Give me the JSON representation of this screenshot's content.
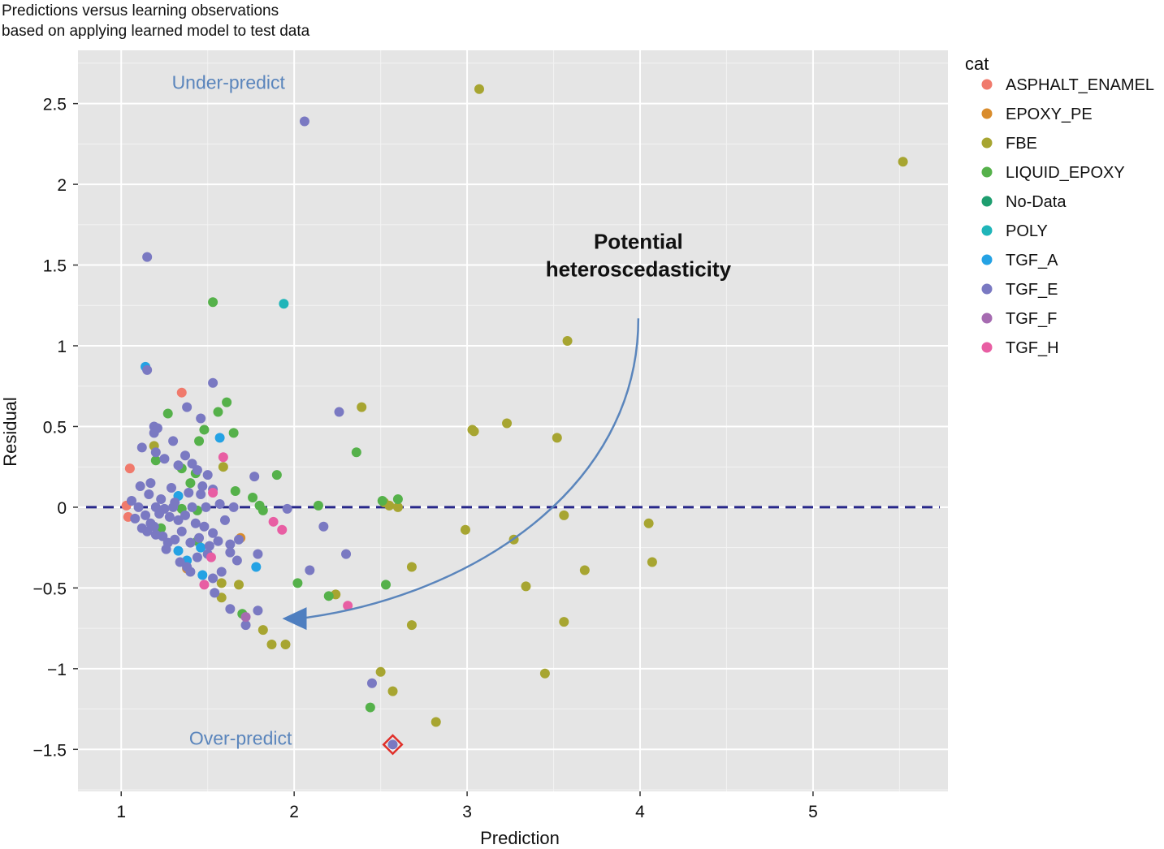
{
  "chart_data": {
    "type": "scatter",
    "title": "Predictions versus learning observations",
    "subtitle": "based on applying learned model to test data",
    "xlabel": "Prediction",
    "ylabel": "Residual",
    "xlim": [
      0.75,
      5.78
    ],
    "ylim": [
      -1.76,
      2.83
    ],
    "xticks": [
      1,
      2,
      3,
      4,
      5
    ],
    "yticks": [
      -1.5,
      -1,
      -0.5,
      0,
      0.5,
      1,
      1.5,
      2,
      2.5
    ],
    "xtick_labels": [
      "1",
      "2",
      "3",
      "4",
      "5"
    ],
    "ytick_labels": [
      "−1.5",
      "−1",
      "−0.5",
      "0",
      "0.5",
      "1",
      "1.5",
      "2",
      "2.5"
    ],
    "grid": true,
    "legend_title": "cat",
    "legend_position": "right",
    "reference_line": {
      "y": 0,
      "style": "dashed",
      "color": "#27278a"
    },
    "annotations": [
      {
        "text": "Under-predict",
        "x": 1.62,
        "y": 2.59,
        "color": "#5a85bc"
      },
      {
        "text": "Over-predict",
        "x": 1.69,
        "y": -1.47,
        "color": "#5a85bc"
      },
      {
        "text": "Potential",
        "x": 3.99,
        "y": 1.6,
        "bold": true
      },
      {
        "text": "heteroscedasticity",
        "x": 3.99,
        "y": 1.43,
        "bold": true
      }
    ],
    "arrow": {
      "from": [
        3.99,
        1.17
      ],
      "control1": [
        3.99,
        0.1
      ],
      "control2": [
        3.0,
        -0.55
      ],
      "to": [
        1.95,
        -0.69
      ],
      "color": "#5a85bc"
    },
    "highlight": {
      "x": 2.57,
      "y": -1.47,
      "color": "#e0302a"
    },
    "series": [
      {
        "name": "ASPHALT_ENAMEL",
        "color": "#f07a6c",
        "points": [
          [
            1.05,
            0.24
          ],
          [
            1.04,
            -0.06
          ],
          [
            1.35,
            0.71
          ],
          [
            1.03,
            0.01
          ]
        ]
      },
      {
        "name": "EPOXY_PE",
        "color": "#d98c2c",
        "points": [
          [
            1.69,
            -0.19
          ],
          [
            1.38,
            -0.38
          ]
        ]
      },
      {
        "name": "FBE",
        "color": "#a7a531",
        "points": [
          [
            3.07,
            2.59
          ],
          [
            5.52,
            2.14
          ],
          [
            3.58,
            1.03
          ],
          [
            2.39,
            0.62
          ],
          [
            3.03,
            0.48
          ],
          [
            3.04,
            0.47
          ],
          [
            3.23,
            0.52
          ],
          [
            3.52,
            0.43
          ],
          [
            1.59,
            0.25
          ],
          [
            1.19,
            0.38
          ],
          [
            1.68,
            -0.48
          ],
          [
            1.58,
            -0.47
          ],
          [
            1.58,
            -0.56
          ],
          [
            1.82,
            -0.76
          ],
          [
            1.87,
            -0.85
          ],
          [
            1.95,
            -0.85
          ],
          [
            2.24,
            -0.54
          ],
          [
            2.99,
            -0.14
          ],
          [
            3.27,
            -0.2
          ],
          [
            3.56,
            -0.05
          ],
          [
            4.05,
            -0.1
          ],
          [
            4.07,
            -0.34
          ],
          [
            3.68,
            -0.39
          ],
          [
            3.34,
            -0.49
          ],
          [
            2.68,
            -0.37
          ],
          [
            3.56,
            -0.71
          ],
          [
            2.68,
            -0.73
          ],
          [
            3.45,
            -1.03
          ],
          [
            2.5,
            -1.02
          ],
          [
            2.57,
            -1.14
          ],
          [
            2.82,
            -1.33
          ],
          [
            2.52,
            0.03
          ],
          [
            2.55,
            0.01
          ],
          [
            2.6,
            0.0
          ]
        ]
      },
      {
        "name": "LIQUID_EPOXY",
        "color": "#55b14a",
        "points": [
          [
            1.53,
            1.27
          ],
          [
            1.61,
            0.65
          ],
          [
            1.56,
            0.59
          ],
          [
            1.65,
            0.46
          ],
          [
            1.27,
            0.58
          ],
          [
            1.48,
            0.48
          ],
          [
            1.45,
            0.41
          ],
          [
            1.9,
            0.2
          ],
          [
            2.36,
            0.34
          ],
          [
            1.2,
            0.29
          ],
          [
            1.35,
            0.24
          ],
          [
            1.43,
            0.21
          ],
          [
            1.66,
            0.1
          ],
          [
            1.76,
            0.06
          ],
          [
            1.8,
            0.01
          ],
          [
            2.14,
            0.01
          ],
          [
            2.51,
            0.04
          ],
          [
            2.6,
            0.05
          ],
          [
            1.82,
            -0.02
          ],
          [
            1.35,
            -0.01
          ],
          [
            1.23,
            -0.13
          ],
          [
            1.44,
            -0.21
          ],
          [
            2.02,
            -0.47
          ],
          [
            2.53,
            -0.48
          ],
          [
            2.2,
            -0.55
          ],
          [
            1.7,
            -0.66
          ],
          [
            2.44,
            -1.24
          ],
          [
            1.4,
            0.15
          ],
          [
            1.44,
            -0.02
          ]
        ]
      },
      {
        "name": "No-Data",
        "color": "#1e9e6f",
        "points": []
      },
      {
        "name": "POLY",
        "color": "#1fb5b9",
        "points": [
          [
            1.94,
            1.26
          ]
        ]
      },
      {
        "name": "TGF_A",
        "color": "#24a2e4",
        "points": [
          [
            1.14,
            0.87
          ],
          [
            1.57,
            0.43
          ],
          [
            1.33,
            0.07
          ],
          [
            1.78,
            -0.37
          ],
          [
            1.47,
            -0.42
          ],
          [
            1.46,
            -0.25
          ],
          [
            1.38,
            -0.33
          ],
          [
            1.33,
            -0.27
          ]
        ]
      },
      {
        "name": "TGF_E",
        "color": "#7a79c2",
        "points": [
          [
            2.06,
            2.39
          ],
          [
            1.15,
            1.55
          ],
          [
            1.15,
            0.85
          ],
          [
            1.53,
            0.77
          ],
          [
            1.38,
            0.62
          ],
          [
            2.26,
            0.59
          ],
          [
            1.46,
            0.55
          ],
          [
            1.19,
            0.5
          ],
          [
            1.21,
            0.49
          ],
          [
            1.3,
            0.41
          ],
          [
            1.19,
            0.46
          ],
          [
            1.12,
            0.37
          ],
          [
            1.2,
            0.34
          ],
          [
            1.25,
            0.3
          ],
          [
            1.37,
            0.32
          ],
          [
            1.33,
            0.26
          ],
          [
            1.41,
            0.27
          ],
          [
            1.44,
            0.23
          ],
          [
            1.5,
            0.2
          ],
          [
            1.77,
            0.19
          ],
          [
            1.11,
            0.13
          ],
          [
            1.17,
            0.15
          ],
          [
            1.29,
            0.12
          ],
          [
            1.39,
            0.09
          ],
          [
            1.46,
            0.08
          ],
          [
            1.16,
            0.08
          ],
          [
            1.23,
            0.05
          ],
          [
            1.31,
            0.03
          ],
          [
            1.06,
            0.04
          ],
          [
            1.1,
            0.0
          ],
          [
            1.2,
            0.0
          ],
          [
            1.25,
            -0.01
          ],
          [
            1.3,
            0.0
          ],
          [
            1.41,
            0.0
          ],
          [
            1.49,
            0.0
          ],
          [
            1.57,
            0.02
          ],
          [
            1.65,
            0.0
          ],
          [
            1.08,
            -0.07
          ],
          [
            1.14,
            -0.05
          ],
          [
            1.17,
            -0.1
          ],
          [
            1.22,
            -0.04
          ],
          [
            1.28,
            -0.06
          ],
          [
            1.33,
            -0.08
          ],
          [
            1.37,
            -0.05
          ],
          [
            1.43,
            -0.1
          ],
          [
            1.48,
            -0.12
          ],
          [
            1.53,
            -0.16
          ],
          [
            1.12,
            -0.13
          ],
          [
            1.15,
            -0.15
          ],
          [
            1.2,
            -0.17
          ],
          [
            1.24,
            -0.18
          ],
          [
            1.27,
            -0.22
          ],
          [
            1.31,
            -0.2
          ],
          [
            1.35,
            -0.15
          ],
          [
            1.4,
            -0.22
          ],
          [
            1.45,
            -0.19
          ],
          [
            1.51,
            -0.24
          ],
          [
            1.56,
            -0.21
          ],
          [
            1.63,
            -0.23
          ],
          [
            1.68,
            -0.2
          ],
          [
            1.19,
            -0.12
          ],
          [
            1.26,
            -0.26
          ],
          [
            1.34,
            -0.34
          ],
          [
            1.38,
            -0.37
          ],
          [
            1.4,
            -0.4
          ],
          [
            1.44,
            -0.31
          ],
          [
            1.5,
            -0.29
          ],
          [
            1.53,
            -0.44
          ],
          [
            1.58,
            -0.4
          ],
          [
            1.63,
            -0.28
          ],
          [
            1.67,
            -0.33
          ],
          [
            1.79,
            -0.29
          ],
          [
            1.54,
            -0.53
          ],
          [
            1.63,
            -0.63
          ],
          [
            1.79,
            -0.64
          ],
          [
            1.72,
            -0.73
          ],
          [
            2.09,
            -0.39
          ],
          [
            2.3,
            -0.29
          ],
          [
            2.17,
            -0.12
          ],
          [
            1.96,
            -0.01
          ],
          [
            2.45,
            -1.09
          ],
          [
            2.57,
            -1.47
          ],
          [
            1.47,
            0.13
          ],
          [
            1.53,
            0.11
          ],
          [
            1.6,
            -0.08
          ]
        ]
      },
      {
        "name": "TGF_F",
        "color": "#a66bb1",
        "points": [
          [
            1.72,
            -0.68
          ]
        ]
      },
      {
        "name": "TGF_H",
        "color": "#e85ea3",
        "points": [
          [
            1.59,
            0.31
          ],
          [
            1.53,
            0.09
          ],
          [
            1.88,
            -0.09
          ],
          [
            1.93,
            -0.14
          ],
          [
            1.52,
            -0.31
          ],
          [
            1.48,
            -0.48
          ],
          [
            2.31,
            -0.61
          ]
        ]
      }
    ]
  }
}
